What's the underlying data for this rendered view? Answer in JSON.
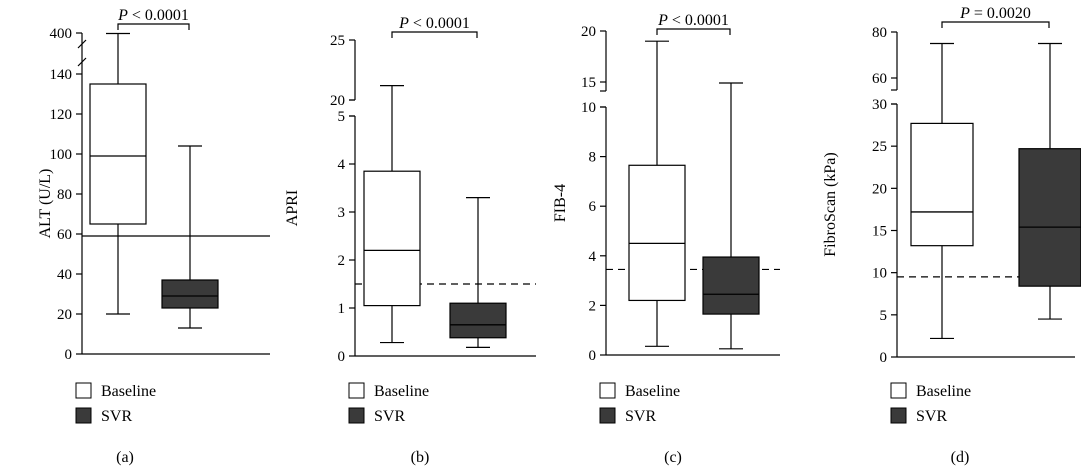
{
  "legend": {
    "items": [
      {
        "label": "Baseline",
        "color": "#ffffff"
      },
      {
        "label": "SVR",
        "color": "#3a3a3a"
      }
    ]
  },
  "chart_data": [
    {
      "type": "box",
      "panel_label": "(a)",
      "ylabel": "ALT (U/L)",
      "lower_ticks": [
        0,
        20,
        40,
        60,
        80,
        100,
        120,
        140
      ],
      "upper_ticks": [
        400
      ],
      "axis_break": true,
      "reference_line": {
        "value": 59,
        "style": "solid"
      },
      "significance": {
        "text": "P < 0.0001"
      },
      "groups": [
        {
          "name": "Baseline",
          "min": 20,
          "q1": 65,
          "median": 99,
          "q3": 135,
          "max": 397
        },
        {
          "name": "SVR",
          "min": 13,
          "q1": 23,
          "median": 29,
          "q3": 37,
          "max": 104
        }
      ]
    },
    {
      "type": "box",
      "panel_label": "(b)",
      "ylabel": "APRI",
      "lower_ticks": [
        0,
        1,
        2,
        3,
        4,
        5
      ],
      "upper_ticks": [
        20,
        25
      ],
      "axis_break": true,
      "reference_line": {
        "value": 1.5,
        "style": "dashed"
      },
      "significance": {
        "text": "P < 0.0001"
      },
      "groups": [
        {
          "name": "Baseline",
          "min": 0.28,
          "q1": 1.05,
          "median": 2.2,
          "q3": 3.85,
          "max": 21.2
        },
        {
          "name": "SVR",
          "min": 0.18,
          "q1": 0.38,
          "median": 0.65,
          "q3": 1.1,
          "max": 3.3
        }
      ]
    },
    {
      "type": "box",
      "panel_label": "(c)",
      "ylabel": "FIB-4",
      "lower_ticks": [
        0,
        2,
        4,
        6,
        8,
        10
      ],
      "upper_ticks": [
        15,
        20
      ],
      "axis_break": true,
      "reference_line": {
        "value": 3.45,
        "style": "dashed"
      },
      "significance": {
        "text": "P < 0.0001"
      },
      "groups": [
        {
          "name": "Baseline",
          "min": 0.35,
          "q1": 2.2,
          "median": 4.5,
          "q3": 7.65,
          "max": 19.0
        },
        {
          "name": "SVR",
          "min": 0.25,
          "q1": 1.65,
          "median": 2.45,
          "q3": 3.95,
          "max": 14.8
        }
      ]
    },
    {
      "type": "box",
      "panel_label": "(d)",
      "ylabel": "FibroScan (kPa)",
      "lower_ticks": [
        0,
        5,
        10,
        15,
        20,
        25,
        30
      ],
      "upper_ticks": [
        60,
        80
      ],
      "axis_break": true,
      "reference_line": {
        "value": 9.5,
        "style": "dashed"
      },
      "significance": {
        "text": "P = 0.0020"
      },
      "groups": [
        {
          "name": "Baseline",
          "min": 2.2,
          "q1": 13.2,
          "median": 17.2,
          "q3": 27.7,
          "max": 75
        },
        {
          "name": "SVR",
          "min": 4.5,
          "q1": 8.4,
          "median": 15.4,
          "q3": 24.7,
          "max": 75
        }
      ]
    }
  ]
}
